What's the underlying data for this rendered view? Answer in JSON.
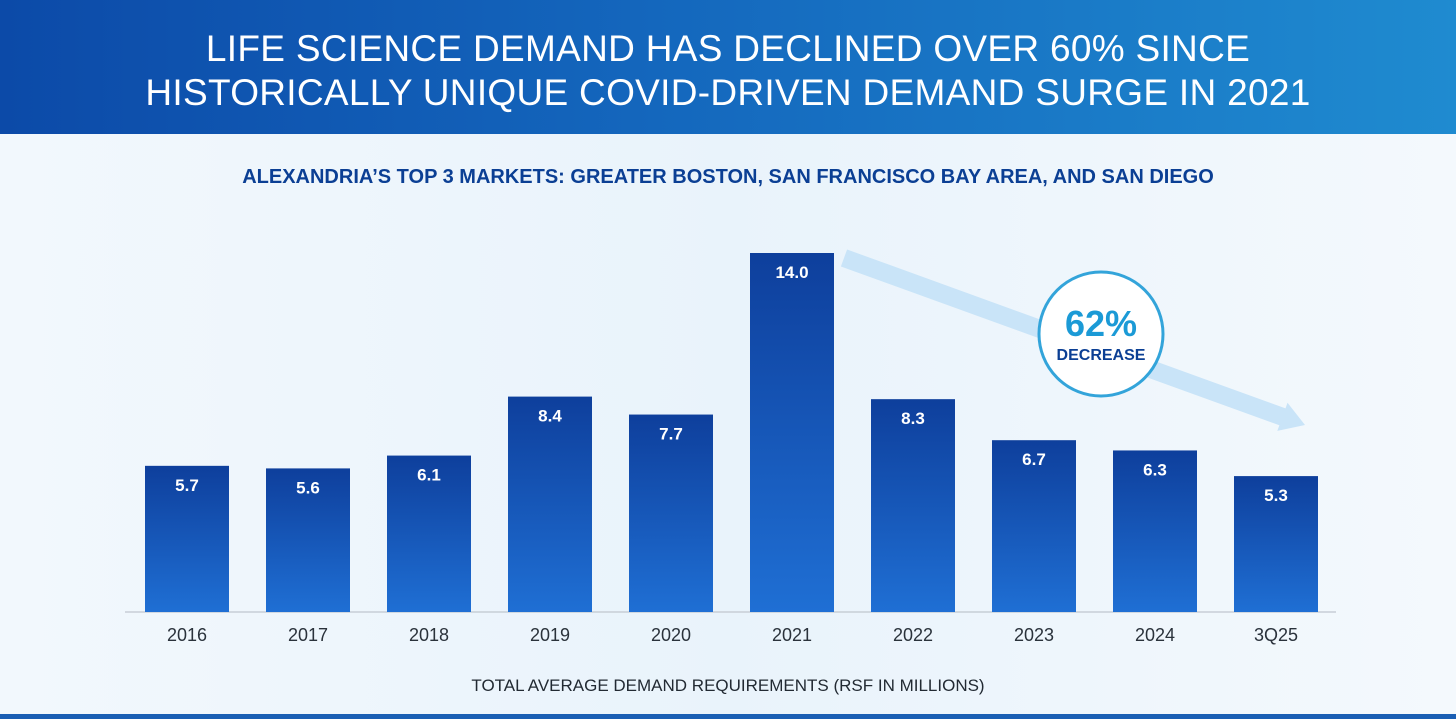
{
  "header": {
    "title_line1": "LIFE SCIENCE DEMAND HAS DECLINED OVER 60% SINCE",
    "title_line2": "HISTORICALLY UNIQUE COVID-DRIVEN DEMAND SURGE IN 2021"
  },
  "chart_data": {
    "type": "bar",
    "title": "LIFE SCIENCE DEMAND HAS DECLINED OVER 60% SINCE HISTORICALLY UNIQUE COVID-DRIVEN DEMAND SURGE IN 2021",
    "subtitle": "ALEXANDRIA’S TOP 3 MARKETS: GREATER BOSTON, SAN FRANCISCO BAY AREA, AND SAN DIEGO",
    "categories": [
      "2016",
      "2017",
      "2018",
      "2019",
      "2020",
      "2021",
      "2022",
      "2023",
      "2024",
      "3Q25"
    ],
    "values": [
      5.7,
      5.6,
      6.1,
      8.4,
      7.7,
      14.0,
      8.3,
      6.7,
      6.3,
      5.3
    ],
    "value_labels": [
      "5.7",
      "5.6",
      "6.1",
      "8.4",
      "7.7",
      "14.0",
      "8.3",
      "6.7",
      "6.3",
      "5.3"
    ],
    "xlabel": "TOTAL AVERAGE DEMAND REQUIREMENTS (RSF IN MILLIONS)",
    "ylabel": "",
    "ylim": [
      0,
      14.0
    ],
    "grid": false,
    "annotation": {
      "value": "62%",
      "label": "DECREASE",
      "from_category": "2021",
      "to_category": "3Q25"
    }
  },
  "colors": {
    "bar_top": "#0e3f9c",
    "bar_bottom": "#1f6fd4",
    "arrow": "#c9e4f8",
    "circle_border": "#33a4da",
    "circle_text": "#1b9ad6",
    "circle_label": "#0b3f94"
  }
}
